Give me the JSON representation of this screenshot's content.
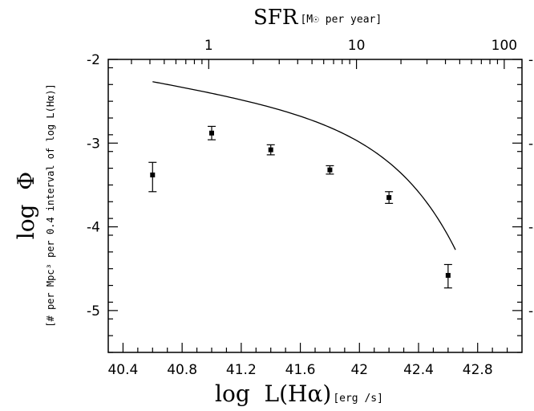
{
  "chart_data": {
    "type": "scatter",
    "title": "",
    "xlabel": {
      "main": "log  L(Hα)",
      "sub": "[erg /s]"
    },
    "ylabel": {
      "main": "log  Φ",
      "sub": "[# per Mpc³ per 0.4 interval of log L(Hα)]"
    },
    "top_axis": {
      "label_main": "SFR",
      "label_sub": "[M☉ per year]",
      "scale": "log",
      "ticks": [
        {
          "value": 1,
          "label": "1",
          "log_lha": 40.98
        },
        {
          "value": 10,
          "label": "10",
          "log_lha": 41.98
        },
        {
          "value": 100,
          "label": "100",
          "log_lha": 42.98
        }
      ]
    },
    "xlim": [
      40.3,
      43.1
    ],
    "ylim": [
      -5.5,
      -2
    ],
    "x_ticks": [
      {
        "value": 40.4,
        "label": "40.4"
      },
      {
        "value": 40.8,
        "label": "40.8"
      },
      {
        "value": 41.2,
        "label": "41.2"
      },
      {
        "value": 41.6,
        "label": "41.6"
      },
      {
        "value": 42.0,
        "label": "42"
      },
      {
        "value": 42.4,
        "label": "42.4"
      },
      {
        "value": 42.8,
        "label": "42.8"
      }
    ],
    "y_ticks": [
      {
        "value": -2,
        "label": "-2"
      },
      {
        "value": -3,
        "label": "-3"
      },
      {
        "value": -4,
        "label": "-4"
      },
      {
        "value": -5,
        "label": "-5"
      }
    ],
    "series": [
      {
        "points": [
          {
            "x": 40.6,
            "y": -3.38,
            "yerr_low": 0.2,
            "yerr_high": 0.15
          },
          {
            "x": 41.0,
            "y": -2.88,
            "yerr_low": 0.08,
            "yerr_high": 0.08
          },
          {
            "x": 41.4,
            "y": -3.08,
            "yerr_low": 0.06,
            "yerr_high": 0.06
          },
          {
            "x": 41.8,
            "y": -3.32,
            "yerr_low": 0.05,
            "yerr_high": 0.05
          },
          {
            "x": 42.2,
            "y": -3.65,
            "yerr_low": 0.07,
            "yerr_high": 0.07
          },
          {
            "x": 42.6,
            "y": -4.58,
            "yerr_low": 0.15,
            "yerr_high": 0.13
          }
        ]
      }
    ],
    "fit_curve": {
      "type": "schechter",
      "log_phi_star": -2.68,
      "log_L_star": 42.14,
      "alpha": -1.3,
      "bin_dex": 0.4,
      "x_range": [
        40.6,
        42.65
      ]
    },
    "grid": false,
    "legend": "none"
  }
}
